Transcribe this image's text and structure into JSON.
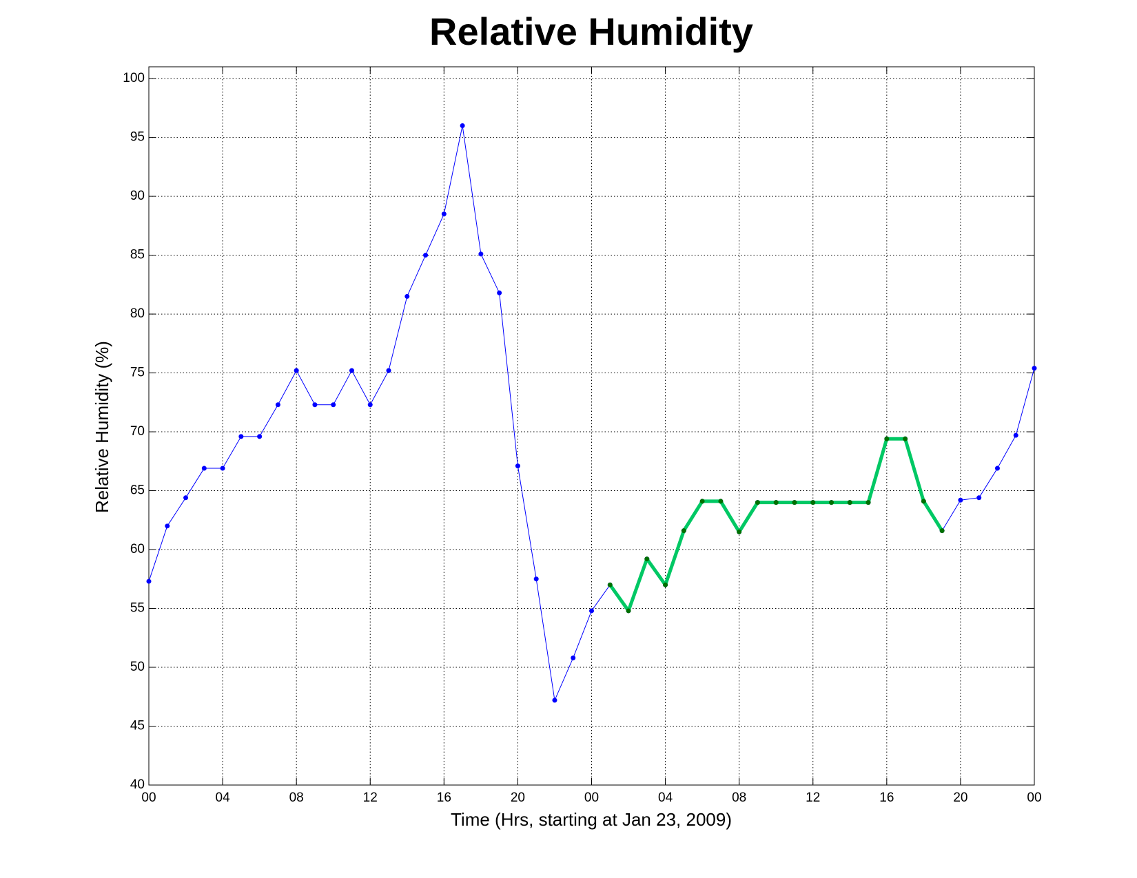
{
  "chart_data": {
    "type": "line",
    "title": "Relative Humidity",
    "x_label": "Time (Hrs, starting at Jan 23, 2009)",
    "y_label": "Relative Humidity (%)",
    "x": [
      0,
      1,
      2,
      3,
      4,
      5,
      6,
      7,
      8,
      9,
      10,
      11,
      12,
      13,
      14,
      15,
      16,
      17,
      18,
      19,
      20,
      21,
      22,
      23,
      24,
      25,
      26,
      27,
      28,
      29,
      30,
      31,
      32,
      33,
      34,
      35,
      36,
      37,
      38,
      39,
      40,
      41,
      42,
      43,
      44,
      45,
      46,
      47,
      48
    ],
    "series": [
      {
        "color": "#0000ff",
        "marker_color": "#0000ff",
        "line_width": 1,
        "values": [
          57.3,
          62.0,
          64.4,
          66.9,
          66.9,
          69.6,
          69.6,
          72.3,
          75.2,
          72.3,
          72.3,
          75.2,
          72.3,
          75.2,
          81.5,
          85.0,
          88.5,
          96.0,
          85.1,
          81.8,
          67.1,
          57.5,
          47.2,
          50.8,
          54.8,
          57.0,
          54.8,
          59.2,
          57.0,
          61.6,
          64.1,
          64.1,
          61.5,
          64.0,
          64.0,
          64.0,
          64.0,
          64.0,
          64.0,
          64.0,
          69.4,
          69.4,
          64.1,
          61.6,
          64.2,
          64.4,
          66.9,
          69.7,
          75.4
        ]
      },
      {
        "color": "#00c864",
        "marker_color": "#007000",
        "line_width": 5,
        "values": [
          null,
          null,
          null,
          null,
          null,
          null,
          null,
          null,
          null,
          null,
          null,
          null,
          null,
          null,
          null,
          null,
          null,
          null,
          null,
          null,
          null,
          null,
          null,
          null,
          null,
          57.0,
          54.8,
          59.2,
          57.0,
          61.6,
          64.1,
          64.1,
          61.5,
          64.0,
          64.0,
          64.0,
          64.0,
          64.0,
          64.0,
          64.0,
          69.4,
          69.4,
          64.1,
          61.6,
          null,
          null,
          null,
          null,
          null
        ]
      }
    ],
    "xlim": [
      0,
      48
    ],
    "xticks": [
      {
        "value": 0,
        "label": "00"
      },
      {
        "value": 4,
        "label": "04"
      },
      {
        "value": 8,
        "label": "08"
      },
      {
        "value": 12,
        "label": "12"
      },
      {
        "value": 16,
        "label": "16"
      },
      {
        "value": 20,
        "label": "20"
      },
      {
        "value": 24,
        "label": "00"
      },
      {
        "value": 28,
        "label": "04"
      },
      {
        "value": 32,
        "label": "08"
      },
      {
        "value": 36,
        "label": "12"
      },
      {
        "value": 40,
        "label": "16"
      },
      {
        "value": 44,
        "label": "20"
      },
      {
        "value": 48,
        "label": "00"
      }
    ],
    "ylim": [
      40,
      101
    ],
    "yticks": [
      40,
      45,
      50,
      55,
      60,
      65,
      70,
      75,
      80,
      85,
      90,
      95,
      100
    ],
    "grid": true
  }
}
